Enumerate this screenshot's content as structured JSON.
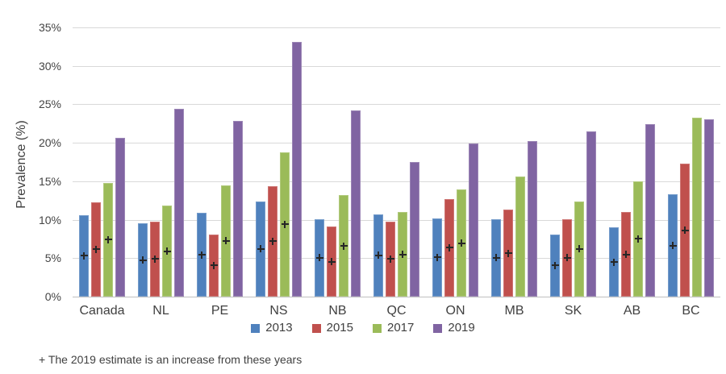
{
  "footnote": "+ The 2019 estimate is an increase from these years",
  "marker_symbol": "+",
  "colors": {
    "grid": "#d9d9d9",
    "axis_line": "#bfbfbf",
    "text": "#404040",
    "marker": "#262626"
  },
  "chart_data": {
    "type": "bar",
    "title": "",
    "xlabel": "",
    "ylabel": "Prevalence (%)",
    "ylim": [
      0,
      35
    ],
    "ytick_labels": [
      "0%",
      "5%",
      "10%",
      "15%",
      "20%",
      "25%",
      "30%",
      "35%"
    ],
    "grid": true,
    "legend_position": "bottom",
    "categories": [
      "Canada",
      "NL",
      "PE",
      "NS",
      "NB",
      "QC",
      "ON",
      "MB",
      "SK",
      "AB",
      "BC"
    ],
    "series": [
      {
        "name": "2013",
        "color": "#4F81BD",
        "values": [
          10.6,
          9.5,
          10.9,
          12.4,
          10.1,
          10.7,
          10.2,
          10.1,
          8.1,
          9.0,
          13.3
        ],
        "increase_marker": [
          true,
          true,
          true,
          true,
          true,
          true,
          true,
          true,
          true,
          true,
          true
        ]
      },
      {
        "name": "2015",
        "color": "#C0504D",
        "values": [
          12.3,
          9.8,
          8.1,
          14.4,
          9.1,
          9.8,
          12.7,
          11.3,
          10.1,
          11.0,
          17.3
        ],
        "increase_marker": [
          true,
          true,
          true,
          true,
          true,
          true,
          true,
          true,
          true,
          true,
          true
        ]
      },
      {
        "name": "2017",
        "color": "#9BBB59",
        "values": [
          14.8,
          11.8,
          14.5,
          18.8,
          13.2,
          11.0,
          13.9,
          15.6,
          12.4,
          15.0,
          23.3
        ],
        "increase_marker": [
          true,
          true,
          true,
          true,
          true,
          true,
          true,
          false,
          true,
          true,
          false
        ]
      },
      {
        "name": "2019",
        "color": "#8064A2",
        "values": [
          20.7,
          24.4,
          22.8,
          33.1,
          24.2,
          17.5,
          19.9,
          20.2,
          21.5,
          22.4,
          23.1
        ],
        "increase_marker": [
          false,
          false,
          false,
          false,
          false,
          false,
          false,
          false,
          false,
          false,
          false
        ]
      }
    ]
  }
}
